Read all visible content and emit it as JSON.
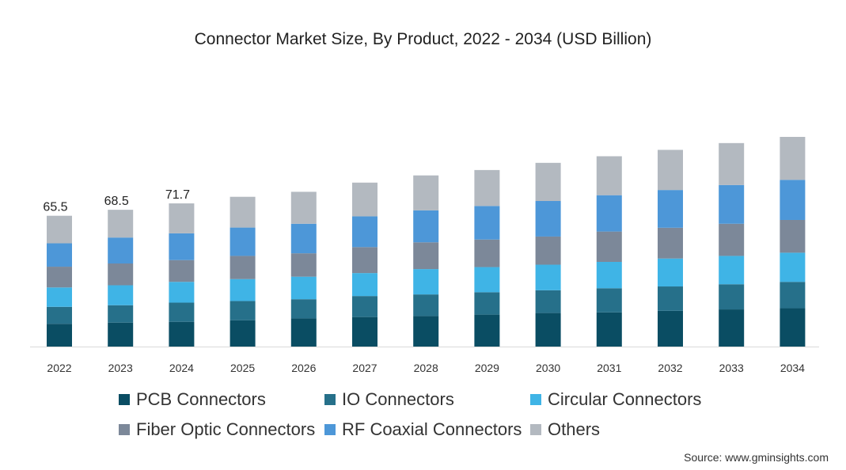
{
  "chart_data": {
    "type": "bar",
    "stacked": true,
    "title": "Connector Market Size, By Product, 2022 - 2034 (USD Billion)",
    "xlabel": "",
    "ylabel": "",
    "ylim": [
      0,
      126
    ],
    "categories": [
      "2022",
      "2023",
      "2024",
      "2025",
      "2026",
      "2027",
      "2028",
      "2029",
      "2030",
      "2031",
      "2032",
      "2033",
      "2034"
    ],
    "series": [
      {
        "name": "PCB Connectors",
        "color": "#0a4d63",
        "values": [
          11.4,
          12.0,
          12.4,
          13.2,
          14.1,
          14.8,
          15.3,
          16.0,
          16.8,
          17.1,
          17.9,
          18.6,
          19.2
        ]
      },
      {
        "name": "IO Connectors",
        "color": "#26708a",
        "values": [
          8.5,
          8.7,
          9.6,
          9.6,
          9.6,
          10.5,
          10.8,
          11.2,
          11.4,
          12.1,
          12.2,
          12.6,
          13.2
        ]
      },
      {
        "name": "Circular Connectors",
        "color": "#3fb4e6",
        "values": [
          9.7,
          10.0,
          10.4,
          11.0,
          11.3,
          11.5,
          12.7,
          12.6,
          12.8,
          13.2,
          14.0,
          14.2,
          14.6
        ]
      },
      {
        "name": "Fiber Optic Connectors",
        "color": "#7c8899",
        "values": [
          10.4,
          10.9,
          10.9,
          11.6,
          11.7,
          13.0,
          13.4,
          13.8,
          14.1,
          15.2,
          15.4,
          16.1,
          16.4
        ]
      },
      {
        "name": "RF Coaxial Connectors",
        "color": "#4d97d8",
        "values": [
          11.7,
          13.0,
          13.4,
          14.2,
          14.8,
          15.4,
          16.0,
          16.8,
          17.8,
          18.2,
          18.9,
          19.4,
          20.1
        ]
      },
      {
        "name": "Others",
        "color": "#b3b9c0",
        "values": [
          13.8,
          13.9,
          15.0,
          15.4,
          16.0,
          16.9,
          17.5,
          18.0,
          19.1,
          19.5,
          20.1,
          21.0,
          21.5
        ]
      }
    ],
    "totals_labels": [
      {
        "category": "2022",
        "text": "65.5"
      },
      {
        "category": "2023",
        "text": "68.5"
      },
      {
        "category": "2024",
        "text": "71.7"
      }
    ],
    "grid": false,
    "legend_position": "bottom"
  },
  "source": "Source: www.gminsights.com"
}
